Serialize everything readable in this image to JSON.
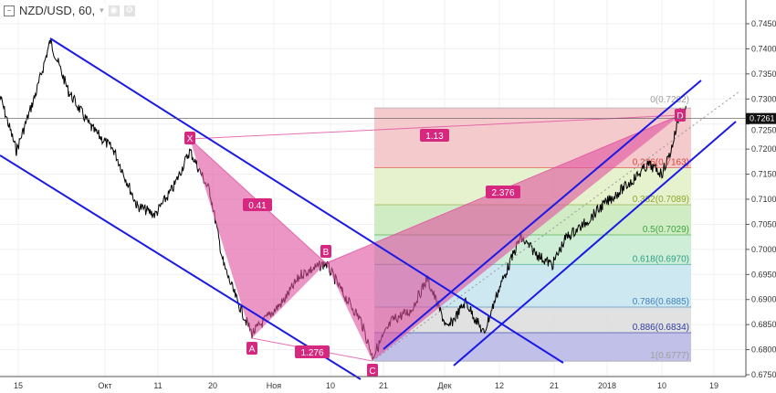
{
  "header": {
    "title": "NZD/USD, 60,",
    "collapse_icon": "minus-square-icon",
    "dropdown_icon": "chevron-down-icon",
    "icons": [
      "eye-icon",
      "gear-icon"
    ]
  },
  "price_axis": {
    "ticks": [
      "0.7450",
      "0.7400",
      "0.7350",
      "0.7300",
      "0.7250",
      "0.7200",
      "0.7150",
      "0.7100",
      "0.7050",
      "0.7000",
      "0.6950",
      "0.6900",
      "0.6850",
      "0.6800",
      "0.6750"
    ],
    "current_price": "0.7261"
  },
  "time_axis": {
    "ticks": [
      "15",
      "Окт",
      "11",
      "20",
      "Ноя",
      "10",
      "21",
      "Дек",
      "12",
      "21",
      "2018",
      "10",
      "19"
    ]
  },
  "fib_levels": [
    {
      "label": "0(0.7282)",
      "level": 0,
      "price": 0.7282,
      "color": "#9e9e9e",
      "fill": "#f3c4c6"
    },
    {
      "label": "0.236(0.7163)",
      "level": 0.236,
      "price": 0.7163,
      "color": "#d9453b",
      "fill": "#e3f1c9"
    },
    {
      "label": "0.382(0.7089)",
      "level": 0.382,
      "price": 0.7089,
      "color": "#8aa62c",
      "fill": "#cbeabf"
    },
    {
      "label": "0.5(0.7029)",
      "level": 0.5,
      "price": 0.7029,
      "color": "#3ea43e",
      "fill": "#c9ecd3"
    },
    {
      "label": "0.618(0.6970)",
      "level": 0.618,
      "price": 0.697,
      "color": "#2e9e8a",
      "fill": "#c9e6ef"
    },
    {
      "label": "0.786(0.6885)",
      "level": 0.786,
      "price": 0.6885,
      "color": "#3c82b8",
      "fill": "#dedede"
    },
    {
      "label": "0.886(0.6834)",
      "level": 0.886,
      "price": 0.6834,
      "color": "#2f3aa0",
      "fill": "#b9b9e6"
    },
    {
      "label": "1(0.6777)",
      "level": 1,
      "price": 0.6777,
      "color": "#9e9e9e",
      "fill": ""
    }
  ],
  "pattern": {
    "points": {
      "X": "X",
      "A": "A",
      "B": "B",
      "C": "C",
      "D": "D"
    },
    "ratios": {
      "xab": "0.41",
      "abc": "1.276",
      "xad": "1.13",
      "bcd": "2.376"
    },
    "color": "#d6287e"
  },
  "colors": {
    "channel": "#1a1ae6",
    "pattern_fill": "#e0509f"
  }
}
